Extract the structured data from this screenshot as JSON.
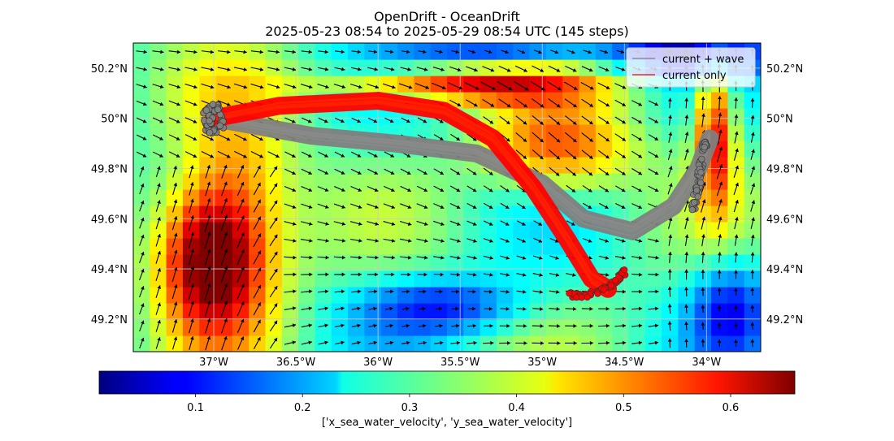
{
  "chart_data": {
    "type": "heatmap",
    "title": "OpenDrift - OceanDrift",
    "subtitle": "2025-05-23 08:54 to 2025-05-29 08:54 UTC (145 steps)",
    "x_ticks": [
      {
        "value": -37.0,
        "label": "37°W"
      },
      {
        "value": -36.5,
        "label": "36.5°W"
      },
      {
        "value": -36.0,
        "label": "36°W"
      },
      {
        "value": -35.5,
        "label": "35.5°W"
      },
      {
        "value": -35.0,
        "label": "35°W"
      },
      {
        "value": -34.5,
        "label": "34.5°W"
      },
      {
        "value": -34.0,
        "label": "34°W"
      }
    ],
    "y_ticks": [
      {
        "value": 49.2,
        "label": "49.2°N"
      },
      {
        "value": 49.4,
        "label": "49.4°N"
      },
      {
        "value": 49.6,
        "label": "49.6°N"
      },
      {
        "value": 49.8,
        "label": "49.8°N"
      },
      {
        "value": 50.0,
        "label": "50°N"
      },
      {
        "value": 50.2,
        "label": "50.2°N"
      }
    ],
    "xlim": [
      -37.49,
      -33.67
    ],
    "ylim": [
      49.07,
      50.3
    ],
    "legend": {
      "position": "top-right",
      "entries": [
        {
          "label": "current + wave",
          "color": "#808080"
        },
        {
          "label": "current only",
          "color": "#ff0000"
        }
      ]
    },
    "colorbar": {
      "label": "['x_sea_water_velocity', 'y_sea_water_velocity']",
      "range": [
        0.01,
        0.66
      ],
      "ticks": [
        {
          "value": 0.1,
          "label": "0.1"
        },
        {
          "value": 0.2,
          "label": "0.2"
        },
        {
          "value": 0.3,
          "label": "0.3"
        },
        {
          "value": 0.4,
          "label": "0.4"
        },
        {
          "value": 0.5,
          "label": "0.5"
        },
        {
          "value": 0.6,
          "label": "0.6"
        }
      ],
      "colormap": "jet"
    },
    "series": [
      {
        "name": "current + wave",
        "color": "#808080",
        "start": {
          "lon": -37.0,
          "lat": 50.0
        },
        "path": [
          [
            -37.0,
            50.0
          ],
          [
            -36.4,
            49.93
          ],
          [
            -35.9,
            49.9
          ],
          [
            -35.4,
            49.86
          ],
          [
            -35.0,
            49.74
          ],
          [
            -34.75,
            49.6
          ],
          [
            -34.45,
            49.55
          ],
          [
            -34.2,
            49.65
          ],
          [
            -34.05,
            49.8
          ],
          [
            -33.98,
            49.92
          ]
        ],
        "end_cluster": [
          [
            -34.09,
            49.62
          ],
          [
            -34.06,
            49.7
          ],
          [
            -34.04,
            49.78
          ],
          [
            -34.02,
            49.86
          ],
          [
            -34.0,
            49.92
          ]
        ]
      },
      {
        "name": "current only",
        "color": "#ff0000",
        "start": {
          "lon": -37.0,
          "lat": 50.0
        },
        "path": [
          [
            -37.0,
            50.0
          ],
          [
            -36.6,
            50.05
          ],
          [
            -36.0,
            50.07
          ],
          [
            -35.6,
            50.03
          ],
          [
            -35.3,
            49.92
          ],
          [
            -35.05,
            49.72
          ],
          [
            -34.85,
            49.52
          ],
          [
            -34.7,
            49.36
          ],
          [
            -34.6,
            49.32
          ]
        ],
        "end_cluster": [
          [
            -34.85,
            49.3
          ],
          [
            -34.75,
            49.29
          ],
          [
            -34.65,
            49.31
          ],
          [
            -34.55,
            49.35
          ],
          [
            -34.48,
            49.4
          ]
        ]
      }
    ],
    "field_description": "current speed magnitude heatmap with quiver arrows"
  }
}
